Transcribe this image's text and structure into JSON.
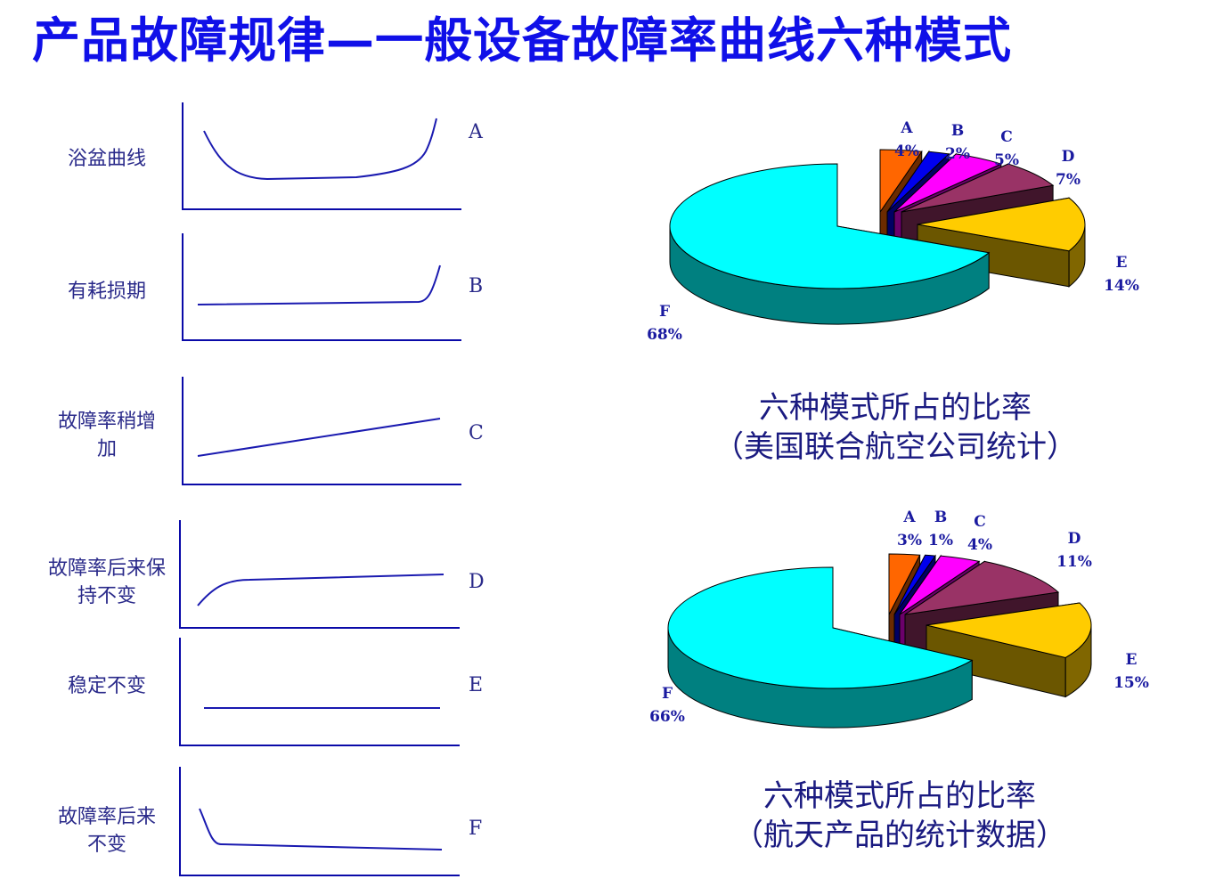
{
  "title": "产品故障规律—一般设备故障率曲线六种模式",
  "colors": {
    "title": "#1010e8",
    "axis": "#0a0aa8",
    "curve": "#1a1ab0",
    "label": "#2a2a8a",
    "pie_label": "#1a1aa0"
  },
  "chart_data": [
    {
      "type": "line",
      "panels": [
        {
          "id": "A",
          "label": "浴盆曲线"
        },
        {
          "id": "B",
          "label": "有耗损期"
        },
        {
          "id": "C",
          "label": "故障率稍增加"
        },
        {
          "id": "D",
          "label": "故障率后来保持不变"
        },
        {
          "id": "E",
          "label": "稳定不变"
        },
        {
          "id": "F",
          "label": "故障率后来不变"
        }
      ]
    },
    {
      "type": "pie",
      "caption": [
        "六种模式所占的比率",
        "（美国联合航空公司统计）"
      ],
      "slices": [
        {
          "name": "A",
          "value": 4,
          "label": "4%",
          "color": "#ff6600"
        },
        {
          "name": "B",
          "value": 2,
          "label": "2%",
          "color": "#0000ee"
        },
        {
          "name": "C",
          "value": 5,
          "label": "5%",
          "color": "#ff00ff"
        },
        {
          "name": "D",
          "value": 7,
          "label": "7%",
          "color": "#993366"
        },
        {
          "name": "E",
          "value": 14,
          "label": "14%",
          "color": "#ffcc00"
        },
        {
          "name": "F",
          "value": 68,
          "label": "68%",
          "color": "#00ffff"
        }
      ]
    },
    {
      "type": "pie",
      "caption": [
        "六种模式所占的比率",
        "（航天产品的统计数据）"
      ],
      "slices": [
        {
          "name": "A",
          "value": 3,
          "label": "3%",
          "color": "#ff6600"
        },
        {
          "name": "B",
          "value": 1,
          "label": "1%",
          "color": "#0000ee"
        },
        {
          "name": "C",
          "value": 4,
          "label": "4%",
          "color": "#ff00ff"
        },
        {
          "name": "D",
          "value": 11,
          "label": "11%",
          "color": "#993366"
        },
        {
          "name": "E",
          "value": 15,
          "label": "15%",
          "color": "#ffcc00"
        },
        {
          "name": "F",
          "value": 66,
          "label": "66%",
          "color": "#00ffff"
        }
      ]
    }
  ]
}
